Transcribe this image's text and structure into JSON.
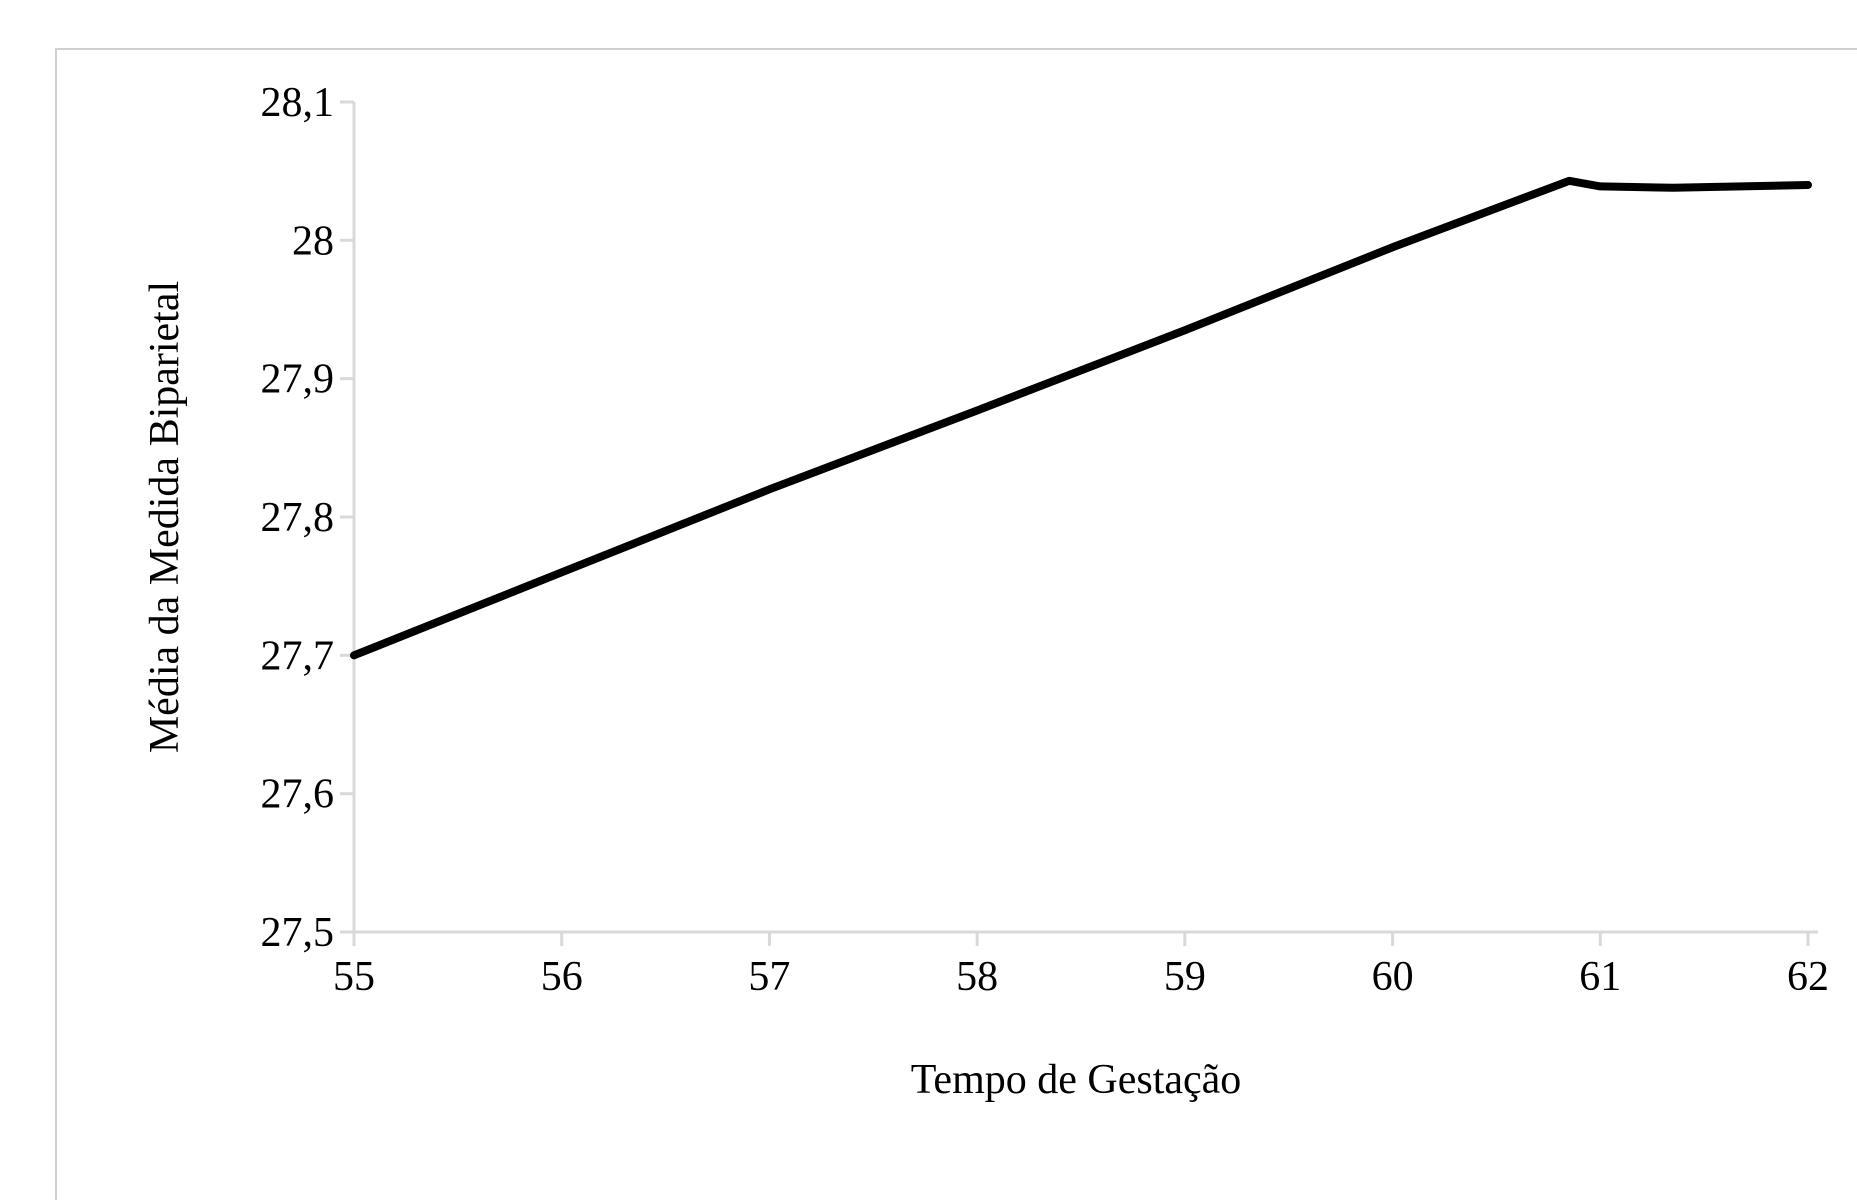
{
  "chart_data": {
    "type": "line",
    "title": "",
    "xlabel": "Tempo de Gestação",
    "ylabel": "Média da Medida Biparietal",
    "xlim": [
      55,
      62
    ],
    "ylim": [
      27.5,
      28.1
    ],
    "x_ticks": [
      "55",
      "56",
      "57",
      "58",
      "59",
      "60",
      "61",
      "62"
    ],
    "y_ticks": [
      "27,5",
      "27,6",
      "27,7",
      "27,8",
      "27,9",
      "28",
      "28,1"
    ],
    "grid": false,
    "legend": "none",
    "line_color": "#000000",
    "series": [
      {
        "x": [
          55,
          56,
          57,
          58,
          59,
          60,
          60.85,
          61.0,
          61.35,
          62.0
        ],
        "values": [
          27.7,
          27.76,
          27.82,
          27.877,
          27.935,
          27.995,
          28.043,
          28.039,
          28.038,
          28.04
        ]
      }
    ]
  }
}
